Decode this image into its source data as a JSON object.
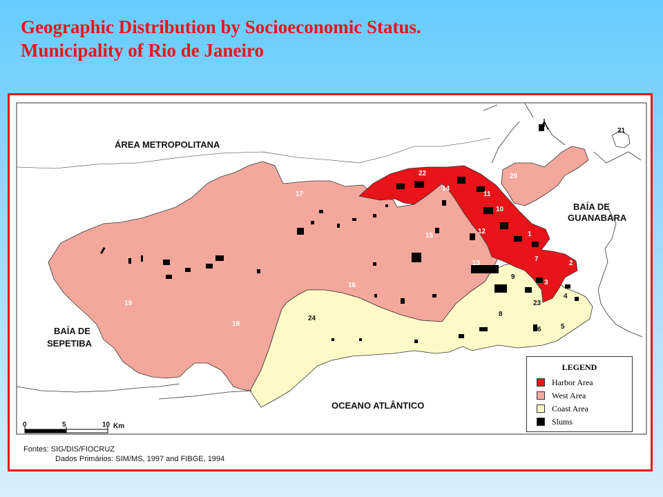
{
  "title": {
    "line1": "Geographic Distribution by Socioeconomic Status.",
    "line2": "Municipality of Rio de Janeiro"
  },
  "map": {
    "place_labels": {
      "area_metropolitana": "ÁREA METROPOLITANA",
      "baia_guanabara_1": "BAÍA DE",
      "baia_guanabara_2": "GUANABARA",
      "baia_sepetiba_1": "BAÍA DE",
      "baia_sepetiba_2": "SEPETIBA",
      "oceano": "OCEANO ATLÂNTICO"
    },
    "region_numbers": [
      "1",
      "2",
      "3",
      "4",
      "5",
      "6",
      "7",
      "8",
      "9",
      "10",
      "11",
      "12",
      "13",
      "14",
      "15",
      "16",
      "17",
      "18",
      "19",
      "20",
      "21",
      "22",
      "23",
      "24"
    ],
    "colors": {
      "harbor": "#e8141a",
      "west": "#f4a89c",
      "coast": "#fdfac8",
      "slums": "#000000",
      "water": "#ffffff",
      "border": "#e8141a"
    }
  },
  "legend": {
    "title": "LEGEND",
    "items": [
      {
        "label": "Harbor Area",
        "color": "#e8141a"
      },
      {
        "label": "West Area",
        "color": "#f4a89c"
      },
      {
        "label": "Coast Area",
        "color": "#fdfac8"
      },
      {
        "label": "Slums",
        "color": "#000000"
      }
    ]
  },
  "scale": {
    "tick0": "0",
    "tick5": "5",
    "tick10": "10",
    "unit": "Km"
  },
  "sources": {
    "line1": "Fontes: SIG/DIS/FIOCRUZ",
    "line2": "Dados Primários:  SIM/MS, 1997 and FIBGE, 1994"
  }
}
